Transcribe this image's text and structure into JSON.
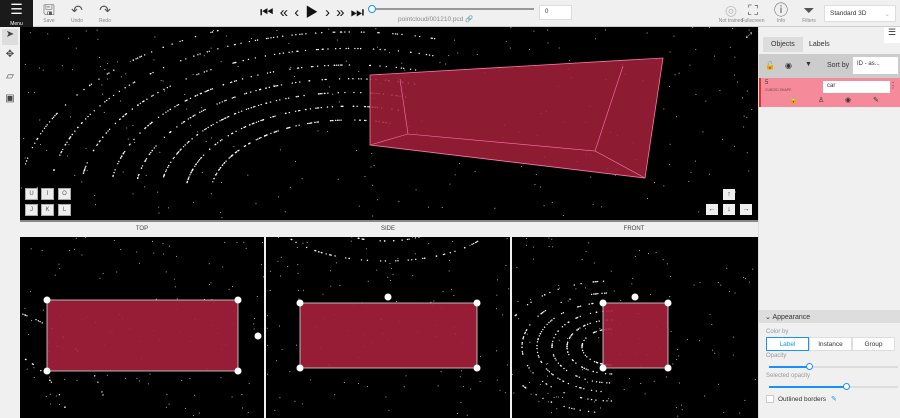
{
  "toolbar": {
    "menu": "Menu",
    "save": "Save",
    "undo": "Undo",
    "redo": "Redo",
    "filename": "pointcloud/001210.pcd",
    "frame": "0",
    "ai": "Not trained",
    "fullscreen": "Fullscreen",
    "info": "Info",
    "filters": "Filters",
    "workspace": "Standard 3D"
  },
  "player": {
    "first": "⏮",
    "back_fast": "«",
    "prev": "‹",
    "play": "▶",
    "next": "›",
    "fwd_fast": "»",
    "last": "⏭",
    "progress": 0
  },
  "views": {
    "top": "TOP",
    "side": "SIDE",
    "front": "FRONT"
  },
  "camera_keys": [
    "U",
    "I",
    "O",
    "J",
    "K",
    "L"
  ],
  "arrows": [
    "↑",
    "←",
    "↓",
    "→"
  ],
  "sidebar": {
    "tabs": [
      "Objects",
      "Labels"
    ],
    "sort_label": "Sort by",
    "sort_value": "ID - as...",
    "object": {
      "id": "5",
      "type": "CUBOID SHAPE",
      "label": "car",
      "color": "#f48a9a"
    }
  },
  "appearance": {
    "title": "Appearance",
    "color_by_label": "Color by",
    "color_by": [
      "Label",
      "Instance",
      "Group"
    ],
    "selected": "Label",
    "opacity_label": "Opacity",
    "opacity": 0.31,
    "selected_opacity_label": "Selected opacity",
    "selected_opacity": 0.6,
    "outlined_label": "Outlined borders",
    "outlined": false
  },
  "colors": {
    "cuboid": "#a6203b",
    "accent": "#1890ff"
  }
}
